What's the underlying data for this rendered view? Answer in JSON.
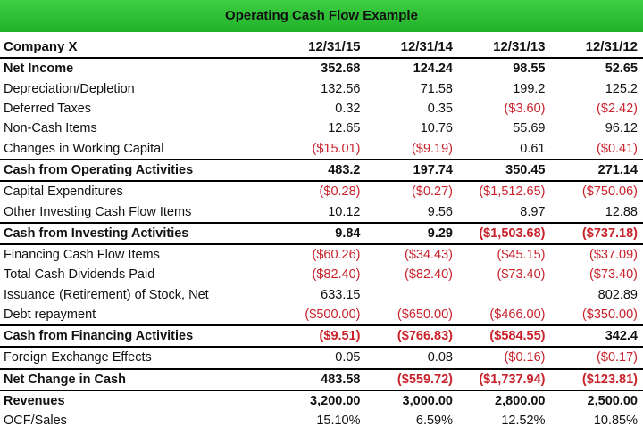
{
  "title": "Operating Cash Flow Example",
  "columns": [
    "Company X",
    "12/31/15",
    "12/31/14",
    "12/31/13",
    "12/31/12"
  ],
  "rows": [
    {
      "label": "Net Income",
      "style": "bold",
      "values": [
        "352.68",
        "124.24",
        "98.55",
        "52.65"
      ]
    },
    {
      "label": "Depreciation/Depletion",
      "style": "normal",
      "values": [
        "132.56",
        "71.58",
        "199.2",
        "125.2"
      ]
    },
    {
      "label": "Deferred Taxes",
      "style": "normal",
      "values": [
        "0.32",
        "0.35",
        "($3.60)",
        "($2.42)"
      ]
    },
    {
      "label": "Non-Cash Items",
      "style": "normal",
      "values": [
        "12.65",
        "10.76",
        "55.69",
        "96.12"
      ]
    },
    {
      "label": "Changes in Working Capital",
      "style": "normal",
      "values": [
        "($15.01)",
        "($9.19)",
        "0.61",
        "($0.41)"
      ]
    },
    {
      "label": "Cash from Operating Activities",
      "style": "total",
      "values": [
        "483.2",
        "197.74",
        "350.45",
        "271.14"
      ]
    },
    {
      "label": "Capital Expenditures",
      "style": "normal",
      "values": [
        "($0.28)",
        "($0.27)",
        "($1,512.65)",
        "($750.06)"
      ]
    },
    {
      "label": "Other Investing Cash Flow Items",
      "style": "normal",
      "values": [
        "10.12",
        "9.56",
        "8.97",
        "12.88"
      ]
    },
    {
      "label": "Cash from Investing Activities",
      "style": "total",
      "values": [
        "9.84",
        "9.29",
        "($1,503.68)",
        "($737.18)"
      ]
    },
    {
      "label": "Financing Cash Flow Items",
      "style": "normal",
      "values": [
        "($60.26)",
        "($34.43)",
        "($45.15)",
        "($37.09)"
      ]
    },
    {
      "label": "Total Cash Dividends Paid",
      "style": "normal",
      "values": [
        "($82.40)",
        "($82.40)",
        "($73.40)",
        "($73.40)"
      ]
    },
    {
      "label": "Issuance (Retirement) of Stock, Net",
      "style": "normal",
      "values": [
        "633.15",
        "",
        "",
        "802.89"
      ]
    },
    {
      "label": "Debt repayment",
      "style": "normal",
      "values": [
        "($500.00)",
        "($650.00)",
        "($466.00)",
        "($350.00)"
      ]
    },
    {
      "label": "Cash from Financing Activities",
      "style": "total",
      "values": [
        "($9.51)",
        "($766.83)",
        "($584.55)",
        "342.4"
      ]
    },
    {
      "label": "Foreign Exchange Effects",
      "style": "normal",
      "values": [
        "0.05",
        "0.08",
        "($0.16)",
        "($0.17)"
      ]
    },
    {
      "label": "Net Change in Cash",
      "style": "total",
      "values": [
        "483.58",
        "($559.72)",
        "($1,737.94)",
        "($123.81)"
      ]
    },
    {
      "label": "Revenues",
      "style": "bold",
      "values": [
        "3,200.00",
        "3,000.00",
        "2,800.00",
        "2,500.00"
      ]
    },
    {
      "label": "OCF/Sales",
      "style": "normal",
      "values": [
        "15.10%",
        "6.59%",
        "12.52%",
        "10.85%"
      ]
    }
  ],
  "colors": {
    "title_bar": "#2cc034",
    "negative": "#c8222b"
  }
}
